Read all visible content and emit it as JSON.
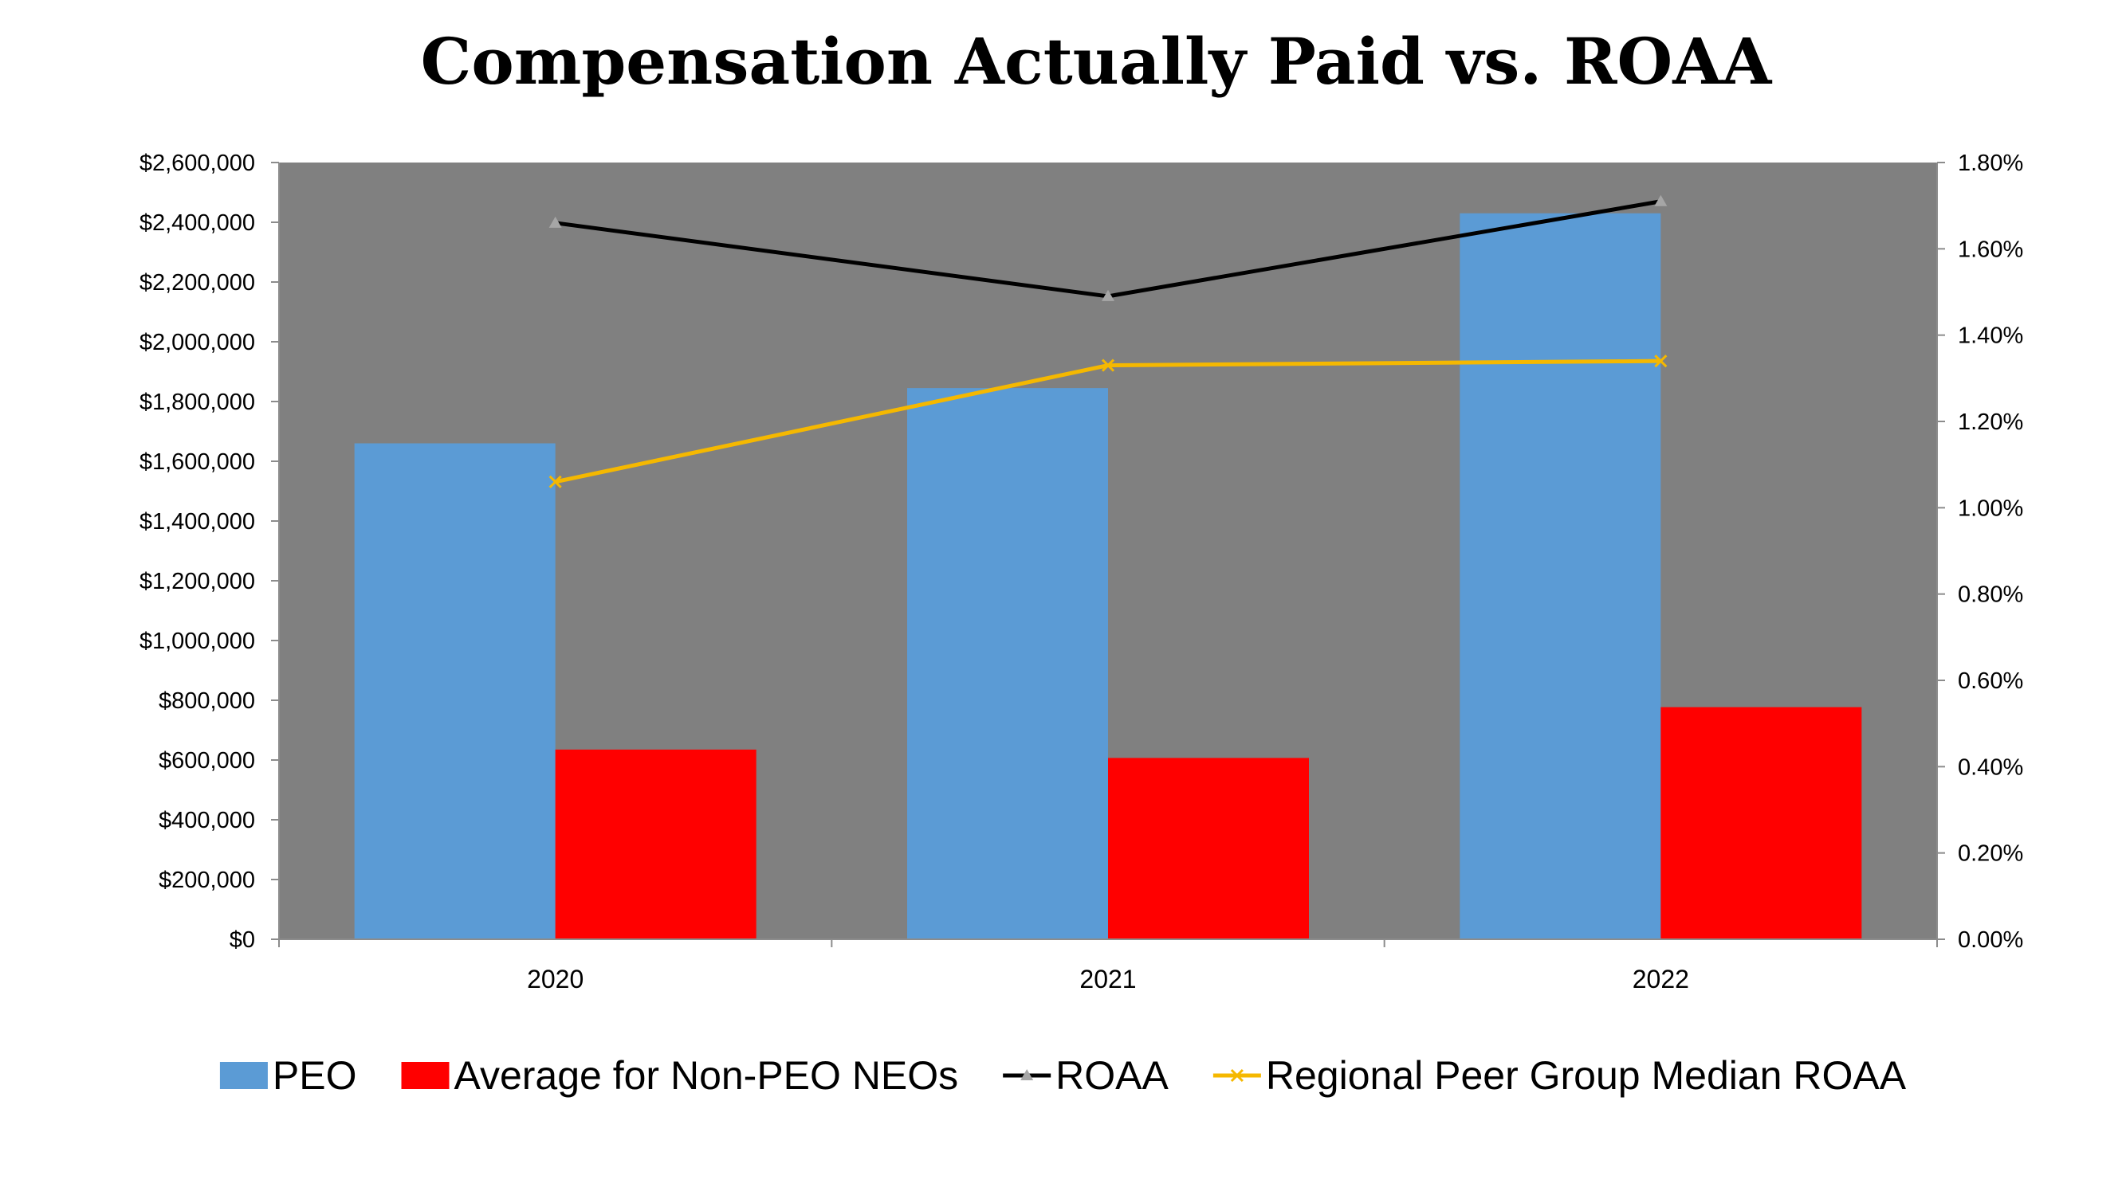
{
  "chart_data": {
    "type": "bar",
    "title": "Compensation Actually Paid vs. ROAA",
    "categories": [
      "2020",
      "2021",
      "2022"
    ],
    "series": [
      {
        "name": "PEO",
        "kind": "bar",
        "axis": "left",
        "color": "#5b9bd5",
        "values": [
          1660000,
          1845000,
          2430000
        ]
      },
      {
        "name": "Average for Non-PEO NEOs",
        "kind": "bar",
        "axis": "left",
        "color": "#ff0000",
        "values": [
          635000,
          607000,
          777000
        ]
      },
      {
        "name": "ROAA",
        "kind": "line",
        "axis": "right",
        "color": "#000000",
        "marker": "triangle",
        "marker_color": "#a6a6a6",
        "values": [
          1.66,
          1.49,
          1.71
        ]
      },
      {
        "name": "Regional Peer Group Median ROAA",
        "kind": "line",
        "axis": "right",
        "color": "#f5b800",
        "marker": "x",
        "marker_color": "#f5b800",
        "values": [
          1.06,
          1.33,
          1.34
        ]
      }
    ],
    "y_left": {
      "min": 0,
      "max": 2600000,
      "step": 200000,
      "tick_labels": [
        "$0",
        "$200,000",
        "$400,000",
        "$600,000",
        "$800,000",
        "$1,000,000",
        "$1,200,000",
        "$1,400,000",
        "$1,600,000",
        "$1,800,000",
        "$2,000,000",
        "$2,200,000",
        "$2,400,000",
        "$2,600,000"
      ]
    },
    "y_right": {
      "min": 0,
      "max": 1.8,
      "step": 0.2,
      "tick_labels": [
        "0.00%",
        "0.20%",
        "0.40%",
        "0.60%",
        "0.80%",
        "1.00%",
        "1.20%",
        "1.40%",
        "1.60%",
        "1.80%"
      ]
    },
    "plot_background": "#808080",
    "grid": false,
    "legend_position": "bottom"
  }
}
